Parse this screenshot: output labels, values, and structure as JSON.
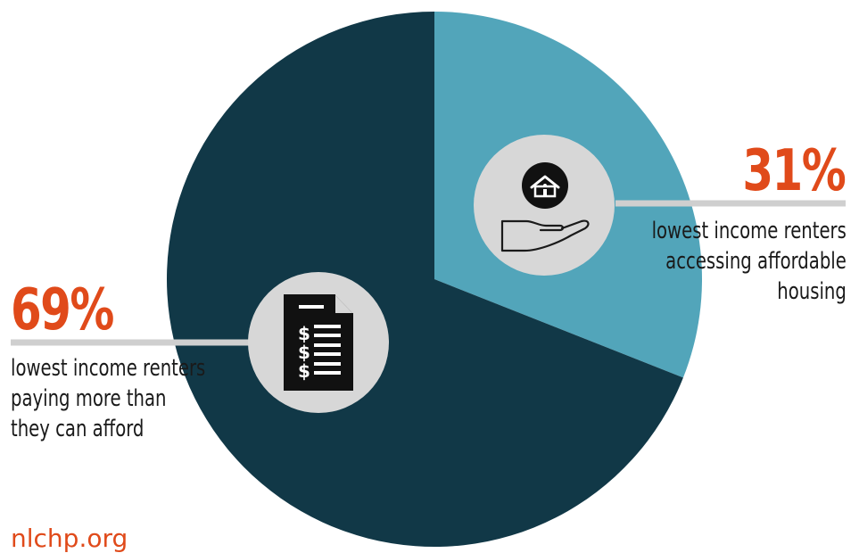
{
  "chart_data": {
    "type": "pie",
    "slices": [
      {
        "value": 31,
        "label": "31%",
        "description_lines": [
          "lowest income renters",
          "accessing affordable",
          "housing"
        ],
        "color": "#52a5ba",
        "icon": "house-in-hand-icon"
      },
      {
        "value": 69,
        "label": "69%",
        "description_lines": [
          "lowest income renters",
          "paying more than",
          "they can afford"
        ],
        "color": "#113847",
        "icon": "bill-document-icon"
      }
    ],
    "accent_color": "#e04a1a",
    "icon_circle_color": "#d7d7d7",
    "leader_line_color": "#cfcfcf"
  },
  "footer": {
    "text": "nlchp.org"
  }
}
